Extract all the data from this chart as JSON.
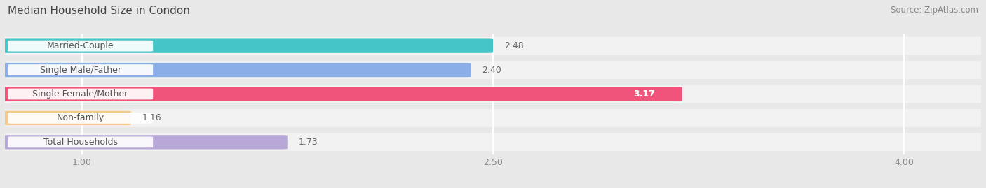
{
  "title": "Median Household Size in Condon",
  "source": "Source: ZipAtlas.com",
  "categories": [
    "Married-Couple",
    "Single Male/Father",
    "Single Female/Mother",
    "Non-family",
    "Total Households"
  ],
  "values": [
    2.48,
    2.4,
    3.17,
    1.16,
    1.73
  ],
  "colors": [
    "#45c5c5",
    "#8aaee8",
    "#f0547a",
    "#f5c98a",
    "#b8a8d8"
  ],
  "value_label_colors": [
    "#666666",
    "#666666",
    "#ffffff",
    "#666666",
    "#666666"
  ],
  "xmin": 0.72,
  "xmax": 4.28,
  "xticks": [
    1.0,
    2.5,
    4.0
  ],
  "xtick_labels": [
    "1.00",
    "2.50",
    "4.00"
  ],
  "title_fontsize": 11,
  "source_fontsize": 8.5,
  "bar_height": 0.55,
  "bar_label_fontsize": 9,
  "category_fontsize": 9,
  "background_color": "#e8e8e8",
  "bar_bg_color": "#f2f2f2",
  "row_bg_color": "#f2f2f2",
  "grid_color": "#ffffff",
  "label_box_color": "#ffffff"
}
